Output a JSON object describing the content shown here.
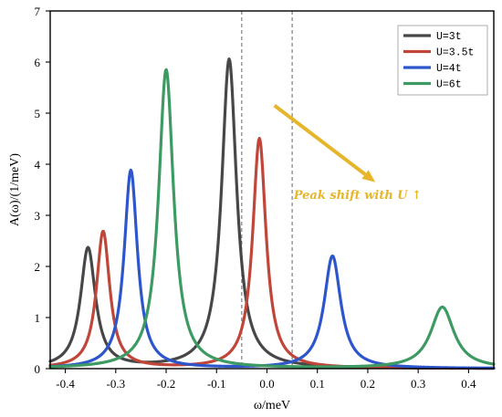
{
  "chart_data": {
    "type": "line",
    "title": "",
    "xlabel": "ω/meV",
    "ylabel": "A(ω)/(1/meV)",
    "xlim": [
      -0.43,
      0.45
    ],
    "ylim": [
      0,
      7
    ],
    "xticks": [
      -0.4,
      -0.3,
      -0.2,
      -0.1,
      0.0,
      0.1,
      0.2,
      0.3,
      0.4
    ],
    "xtick_labels": [
      "-0.4",
      "-0.3",
      "-0.2",
      "-0.1",
      "0.0",
      "0.1",
      "0.2",
      "0.3",
      "0.4"
    ],
    "yticks": [
      0,
      1,
      2,
      3,
      4,
      5,
      6,
      7
    ],
    "ytick_labels": [
      "0",
      "1",
      "2",
      "3",
      "4",
      "5",
      "6",
      "7"
    ],
    "grid": false,
    "legend_position": "top-right",
    "vertical_reference_lines": [
      -0.05,
      0.05
    ],
    "series": [
      {
        "name": "U=3t",
        "color": "#474747",
        "peaks": [
          {
            "x": -0.355,
            "y": 2.35,
            "gamma": 0.018
          },
          {
            "x": -0.075,
            "y": 6.05,
            "gamma": 0.018
          }
        ]
      },
      {
        "name": "U=3.5t",
        "color": "#c0463a",
        "peaks": [
          {
            "x": -0.325,
            "y": 2.68,
            "gamma": 0.016
          },
          {
            "x": -0.015,
            "y": 4.5,
            "gamma": 0.016
          }
        ]
      },
      {
        "name": "U=4t",
        "color": "#2e56cc",
        "peaks": [
          {
            "x": -0.27,
            "y": 3.88,
            "gamma": 0.016
          },
          {
            "x": 0.13,
            "y": 2.2,
            "gamma": 0.02
          }
        ]
      },
      {
        "name": "U=6t",
        "color": "#3d9a63",
        "peaks": [
          {
            "x": -0.2,
            "y": 5.85,
            "gamma": 0.018
          },
          {
            "x": 0.348,
            "y": 1.2,
            "gamma": 0.028
          }
        ]
      }
    ],
    "annotation": {
      "text": "Peak shift with U ↑",
      "color": "#e6b52a",
      "arrow_from": [
        0.015,
        5.15
      ],
      "arrow_to": [
        0.215,
        3.65
      ],
      "text_anchor": [
        0.18,
        3.32
      ]
    }
  }
}
